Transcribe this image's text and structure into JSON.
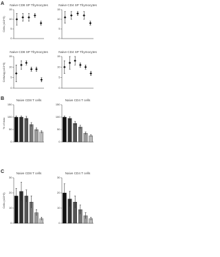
{
  "chart_data": [
    {
      "type": "errorbar",
      "panel": "A",
      "title": "Naive CD8 SP Thymocytes",
      "ylabel": "Cells (x10^5)",
      "values": [
        10,
        11,
        11,
        12,
        8
      ],
      "errors": [
        3,
        2,
        2,
        1,
        1
      ],
      "color": "#111111",
      "ylim": [
        0,
        15
      ],
      "yticks": [
        0,
        5,
        10,
        15
      ]
    },
    {
      "type": "errorbar",
      "title": "Naive CD4 SP Thymocytes",
      "values": [
        11,
        12,
        13,
        12,
        8
      ],
      "errors": [
        3,
        2,
        1,
        2,
        1
      ],
      "color": "#111111",
      "ylim": [
        0,
        15
      ],
      "yticks": [
        0,
        5,
        10,
        15
      ]
    },
    {
      "type": "errorbar",
      "title": "Naive CD8 SP Thymocytes",
      "ylabel": "Cells/ug (x10^5)",
      "values": [
        7,
        11,
        12,
        9,
        9,
        4
      ],
      "errors": [
        4,
        2,
        1,
        1,
        1,
        1
      ],
      "color": "#111111",
      "ylim": [
        0,
        15
      ],
      "yticks": [
        0,
        5,
        10,
        15
      ]
    },
    {
      "type": "errorbar",
      "title": "Naive CD4 SP Thymocytes",
      "values": [
        10,
        12,
        13,
        11,
        10,
        7
      ],
      "errors": [
        3,
        3,
        2,
        1,
        1,
        1
      ],
      "color": "#111111",
      "ylim": [
        0,
        15
      ],
      "yticks": [
        0,
        5,
        10,
        15
      ]
    },
    {
      "type": "bar",
      "panel": "B",
      "title": "Naive CD8 T cells",
      "ylabel": "% of max",
      "values": [
        100,
        100,
        95,
        70,
        50,
        40
      ],
      "errors": [
        5,
        5,
        8,
        8,
        6,
        5
      ],
      "colors": [
        "#111111",
        "#333333",
        "#555555",
        "#777777",
        "#999999",
        "#bbbbbb"
      ],
      "ylim": [
        0,
        150
      ],
      "yticks": [
        0,
        50,
        100,
        150
      ]
    },
    {
      "type": "bar",
      "title": "Naive CD4 T cells",
      "values": [
        100,
        95,
        75,
        60,
        35,
        25
      ],
      "errors": [
        5,
        6,
        8,
        7,
        5,
        4
      ],
      "colors": [
        "#111111",
        "#333333",
        "#555555",
        "#777777",
        "#999999",
        "#bbbbbb"
      ],
      "ylim": [
        0,
        150
      ],
      "yticks": [
        0,
        50,
        100,
        150
      ]
    },
    {
      "type": "bar",
      "panel": "C",
      "title": "Naive CD8 T cells",
      "ylabel": "Cells (x10^5)",
      "values": [
        18,
        21,
        18,
        14,
        7,
        3
      ],
      "errors": [
        5,
        6,
        4,
        4,
        2,
        1
      ],
      "colors": [
        "#111111",
        "#333333",
        "#555555",
        "#777777",
        "#999999",
        "#bbbbbb"
      ],
      "ylim": [
        0,
        30
      ],
      "yticks": [
        0,
        10,
        20,
        30
      ]
    },
    {
      "type": "bar",
      "title": "Naive CD4 T cells",
      "values": [
        20,
        16,
        14,
        9,
        5,
        3
      ],
      "errors": [
        6,
        5,
        4,
        3,
        2,
        1
      ],
      "colors": [
        "#111111",
        "#333333",
        "#555555",
        "#777777",
        "#999999",
        "#bbbbbb"
      ],
      "ylim": [
        0,
        30
      ],
      "yticks": [
        0,
        10,
        20,
        30
      ]
    }
  ]
}
